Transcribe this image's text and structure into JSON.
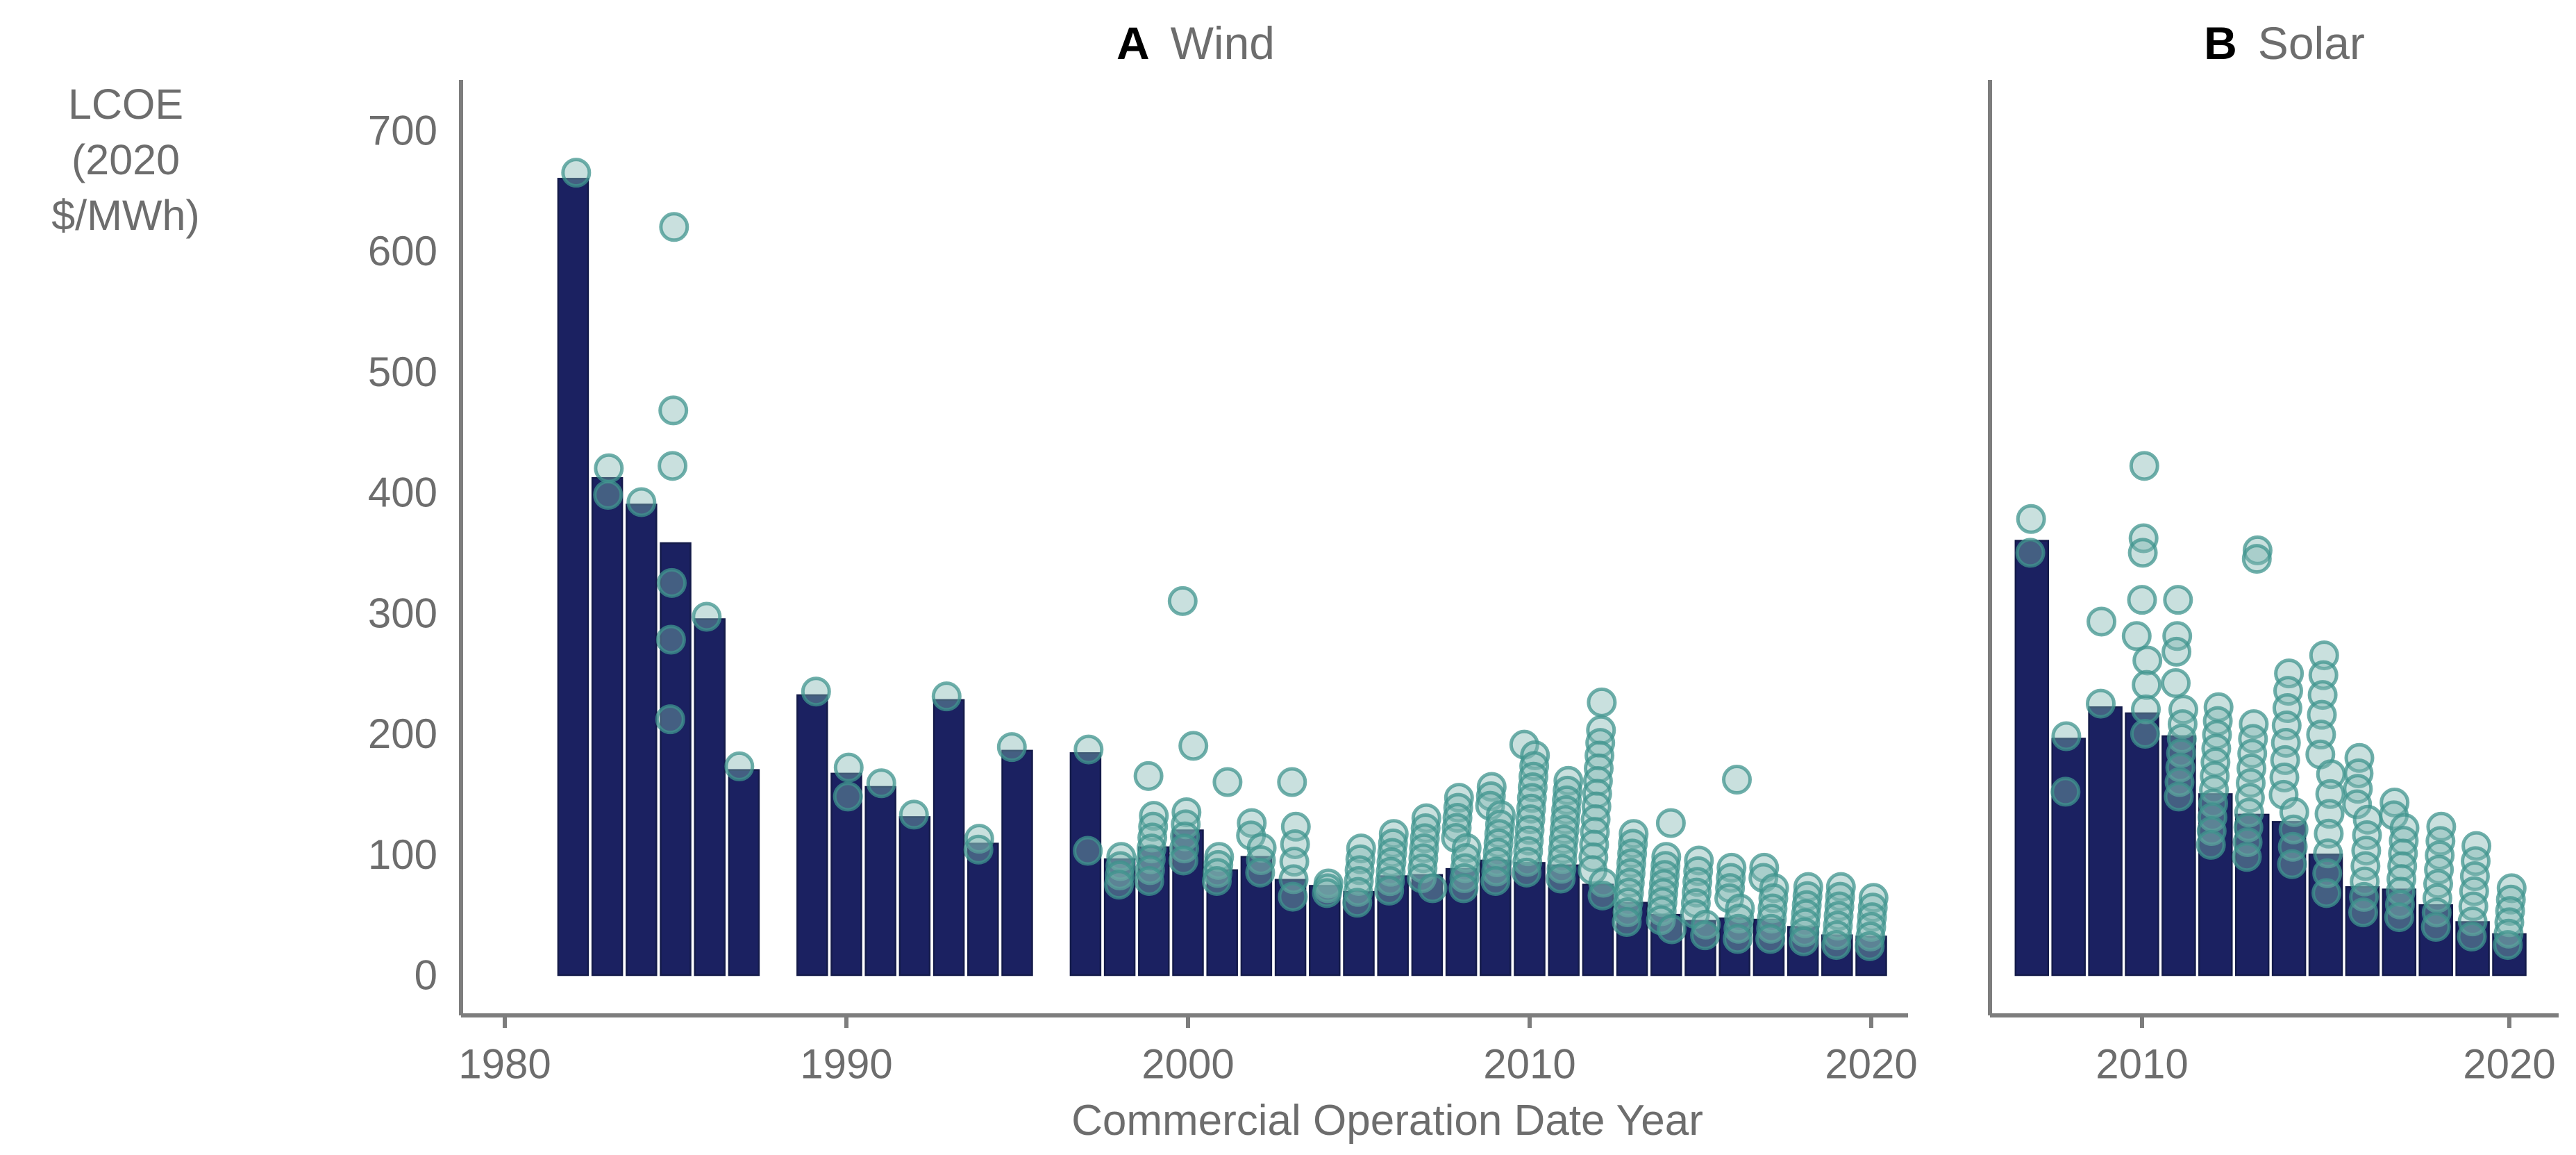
{
  "figure": {
    "background": "#ffffff",
    "kind": "two-panel bar chart with overlaid scatter points"
  },
  "y_axis": {
    "label_line1": "LCOE",
    "label_line2": "(2020 $/MWh)",
    "ticks": [
      0,
      100,
      200,
      300,
      400,
      500,
      600,
      700
    ],
    "range": [
      0,
      700
    ]
  },
  "x_axis": {
    "label": "Commercial Operation Date Year",
    "panel_a_ticks": [
      1980,
      1990,
      2000,
      2010,
      2020
    ],
    "panel_b_ticks": [
      2010,
      2020
    ]
  },
  "colors": {
    "bar": "#1b2161",
    "bar_stroke": "#141b4a",
    "point_fill": "#7fb6b0",
    "point_stroke": "#3f948d",
    "axis": "#7d7d7d",
    "text": "#6d6d6d",
    "panel_letter": "#000000"
  },
  "chart_data": [
    {
      "type": "bar",
      "panel_label": "A",
      "title": "Wind",
      "xlabel": "Commercial Operation Date Year",
      "ylabel": "LCOE (2020 $/MWh)",
      "ylim": [
        0,
        700
      ],
      "xlim": [
        1980,
        2021
      ],
      "missing_years": [
        1988,
        1996
      ],
      "series": [
        {
          "year": 1982,
          "bar": 660,
          "outliers": [
            665
          ]
        },
        {
          "year": 1983,
          "bar": 412,
          "outliers": [
            420,
            398
          ]
        },
        {
          "year": 1984,
          "bar": 390,
          "outliers": [
            392
          ]
        },
        {
          "year": 1985,
          "bar": 358,
          "outliers": [
            620,
            468,
            422,
            325,
            278,
            212
          ]
        },
        {
          "year": 1986,
          "bar": 295,
          "outliers": [
            297
          ]
        },
        {
          "year": 1987,
          "bar": 170,
          "outliers": [
            173
          ]
        },
        {
          "year": 1989,
          "bar": 232,
          "outliers": [
            235
          ]
        },
        {
          "year": 1990,
          "bar": 167,
          "outliers": [
            172,
            148
          ]
        },
        {
          "year": 1991,
          "bar": 156,
          "outliers": [
            159
          ]
        },
        {
          "year": 1992,
          "bar": 131,
          "outliers": [
            133
          ]
        },
        {
          "year": 1993,
          "bar": 228,
          "outliers": [
            231
          ]
        },
        {
          "year": 1994,
          "bar": 109,
          "outliers": [
            113,
            104
          ]
        },
        {
          "year": 1995,
          "bar": 186,
          "outliers": [
            189
          ]
        },
        {
          "year": 1997,
          "bar": 184,
          "outliers": [
            187,
            103
          ]
        },
        {
          "year": 1998,
          "bar": 96,
          "column": {
            "min": 75,
            "max": 98,
            "n": 4
          },
          "outliers": []
        },
        {
          "year": 1999,
          "bar": 106,
          "column": {
            "min": 78,
            "max": 132,
            "n": 7
          },
          "outliers": [
            165
          ]
        },
        {
          "year": 2000,
          "bar": 120,
          "column": {
            "min": 95,
            "max": 135,
            "n": 5
          },
          "outliers": [
            310,
            190
          ]
        },
        {
          "year": 2001,
          "bar": 87,
          "column": {
            "min": 78,
            "max": 98,
            "n": 4
          },
          "outliers": [
            160
          ]
        },
        {
          "year": 2002,
          "bar": 98,
          "column": {
            "min": 85,
            "max": 126,
            "n": 5
          },
          "outliers": []
        },
        {
          "year": 2003,
          "bar": 79,
          "column": {
            "min": 65,
            "max": 123,
            "n": 5
          },
          "outliers": [
            160
          ]
        },
        {
          "year": 2004,
          "bar": 74,
          "column": {
            "min": 68,
            "max": 76,
            "n": 3
          },
          "outliers": []
        },
        {
          "year": 2005,
          "bar": 69,
          "column": {
            "min": 60,
            "max": 105,
            "n": 6
          },
          "outliers": []
        },
        {
          "year": 2006,
          "bar": 82,
          "column": {
            "min": 70,
            "max": 117,
            "n": 7
          },
          "outliers": []
        },
        {
          "year": 2007,
          "bar": 83,
          "column": {
            "min": 72,
            "max": 130,
            "n": 8
          },
          "outliers": []
        },
        {
          "year": 2008,
          "bar": 88,
          "column": {
            "min": 72,
            "max": 147,
            "n": 10
          },
          "outliers": []
        },
        {
          "year": 2009,
          "bar": 95,
          "column": {
            "min": 78,
            "max": 156,
            "n": 11
          },
          "outliers": []
        },
        {
          "year": 2010,
          "bar": 93,
          "column": {
            "min": 85,
            "max": 191,
            "n": 13
          },
          "outliers": []
        },
        {
          "year": 2011,
          "bar": 91,
          "column": {
            "min": 80,
            "max": 161,
            "n": 11
          },
          "outliers": []
        },
        {
          "year": 2012,
          "bar": 75,
          "column": {
            "min": 66,
            "max": 203,
            "n": 14
          },
          "outliers": [
            226
          ]
        },
        {
          "year": 2013,
          "bar": 60,
          "column": {
            "min": 44,
            "max": 117,
            "n": 10
          },
          "outliers": []
        },
        {
          "year": 2014,
          "bar": 50,
          "column": {
            "min": 38,
            "max": 98,
            "n": 9
          },
          "outliers": [
            126
          ]
        },
        {
          "year": 2015,
          "bar": 45,
          "column": {
            "min": 33,
            "max": 95,
            "n": 8
          },
          "outliers": []
        },
        {
          "year": 2016,
          "bar": 47,
          "column": {
            "min": 30,
            "max": 89,
            "n": 8
          },
          "outliers": [
            162
          ]
        },
        {
          "year": 2017,
          "bar": 46,
          "column": {
            "min": 30,
            "max": 89,
            "n": 8
          },
          "outliers": []
        },
        {
          "year": 2018,
          "bar": 40,
          "column": {
            "min": 28,
            "max": 73,
            "n": 7
          },
          "outliers": []
        },
        {
          "year": 2019,
          "bar": 33,
          "column": {
            "min": 25,
            "max": 73,
            "n": 7
          },
          "outliers": []
        },
        {
          "year": 2020,
          "bar": 32,
          "column": {
            "min": 24,
            "max": 64,
            "n": 6
          },
          "outliers": []
        }
      ]
    },
    {
      "type": "bar",
      "panel_label": "B",
      "title": "Solar",
      "xlabel": "Commercial Operation Date Year",
      "ylabel": "LCOE (2020 $/MWh)",
      "ylim": [
        0,
        700
      ],
      "xlim": [
        2006,
        2021
      ],
      "missing_years": [],
      "series": [
        {
          "year": 2007,
          "bar": 360,
          "outliers": [
            378,
            350
          ]
        },
        {
          "year": 2008,
          "bar": 196,
          "outliers": [
            198,
            152
          ]
        },
        {
          "year": 2009,
          "bar": 222,
          "outliers": [
            293,
            225
          ]
        },
        {
          "year": 2010,
          "bar": 217,
          "column": {
            "min": 200,
            "max": 281,
            "n": 5
          },
          "outliers": [
            422,
            362,
            350,
            311
          ]
        },
        {
          "year": 2011,
          "bar": 198,
          "column": {
            "min": 148,
            "max": 220,
            "n": 7
          },
          "outliers": [
            311,
            281,
            268,
            242
          ]
        },
        {
          "year": 2012,
          "bar": 150,
          "column": {
            "min": 108,
            "max": 222,
            "n": 11
          },
          "outliers": []
        },
        {
          "year": 2013,
          "bar": 133,
          "column": {
            "min": 98,
            "max": 208,
            "n": 10
          },
          "outliers": [
            352,
            345
          ]
        },
        {
          "year": 2014,
          "bar": 127,
          "column": {
            "min": 92,
            "max": 250,
            "n": 12
          },
          "outliers": []
        },
        {
          "year": 2015,
          "bar": 100,
          "column": {
            "min": 68,
            "max": 265,
            "n": 13
          },
          "outliers": []
        },
        {
          "year": 2016,
          "bar": 73,
          "column": {
            "min": 52,
            "max": 180,
            "n": 11
          },
          "outliers": []
        },
        {
          "year": 2017,
          "bar": 71,
          "column": {
            "min": 48,
            "max": 143,
            "n": 10
          },
          "outliers": []
        },
        {
          "year": 2018,
          "bar": 58,
          "column": {
            "min": 40,
            "max": 123,
            "n": 8
          },
          "outliers": []
        },
        {
          "year": 2019,
          "bar": 44,
          "column": {
            "min": 32,
            "max": 107,
            "n": 7
          },
          "outliers": []
        },
        {
          "year": 2020,
          "bar": 34,
          "column": {
            "min": 25,
            "max": 72,
            "n": 6
          },
          "outliers": []
        }
      ]
    }
  ]
}
